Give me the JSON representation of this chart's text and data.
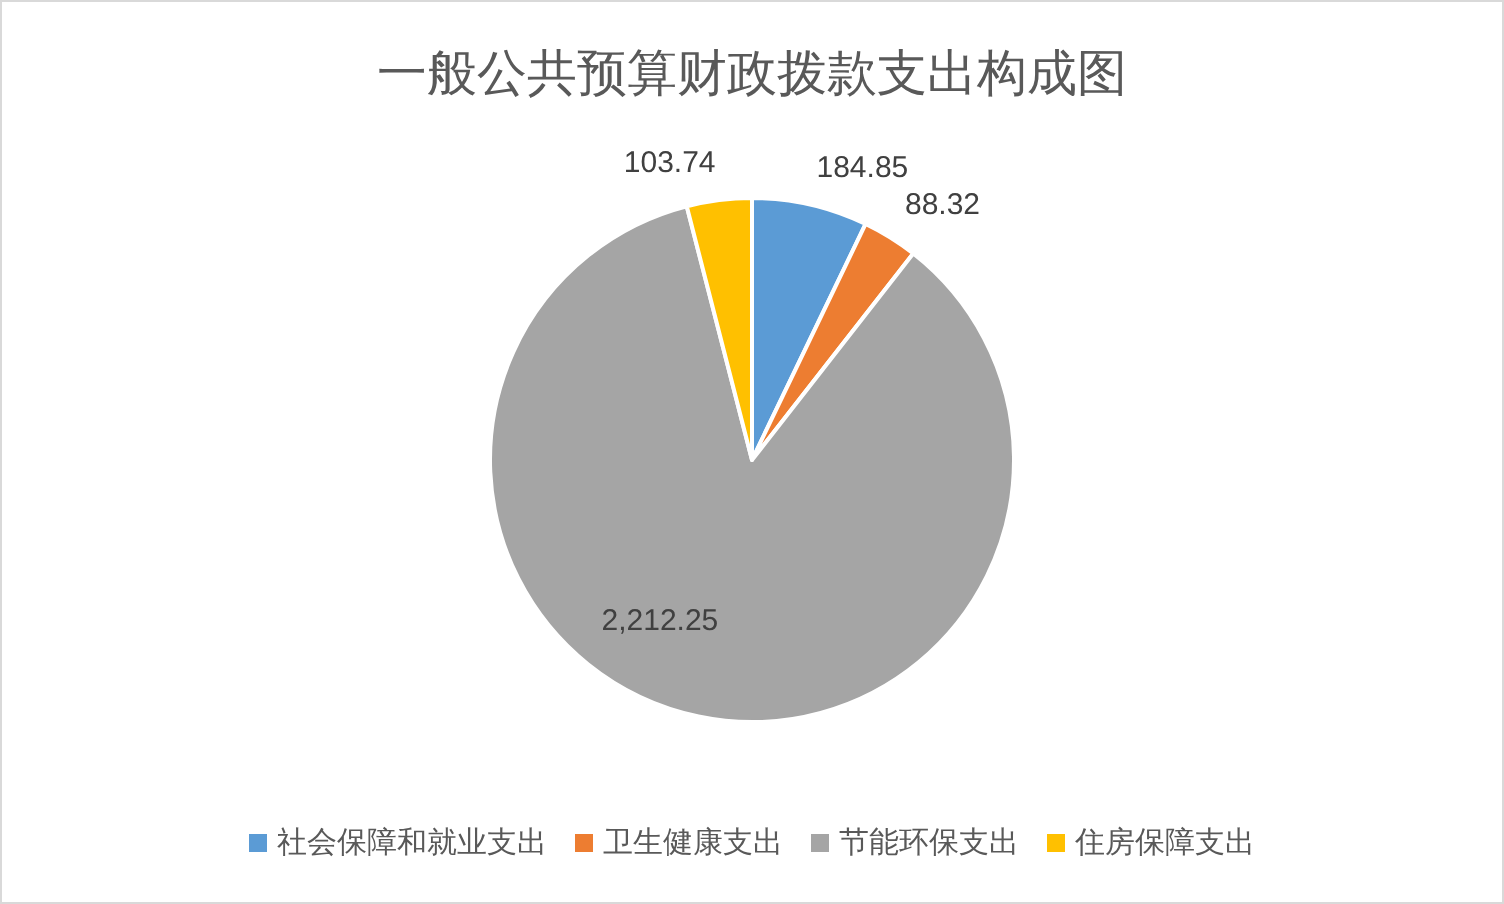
{
  "chart_data": {
    "type": "pie",
    "title": "一般公共预算财政拨款支出构成图",
    "categories": [
      "社会保障和就业支出",
      "卫生健康支出",
      "节能环保支出",
      "住房保障支出"
    ],
    "values": [
      184.85,
      88.32,
      2212.25,
      103.74
    ],
    "value_labels": [
      "184.85",
      "88.32",
      "2,212.25",
      "103.74"
    ],
    "colors": [
      "#5b9bd5",
      "#ed7d31",
      "#a5a5a5",
      "#ffc000"
    ],
    "legend": "bottom"
  }
}
